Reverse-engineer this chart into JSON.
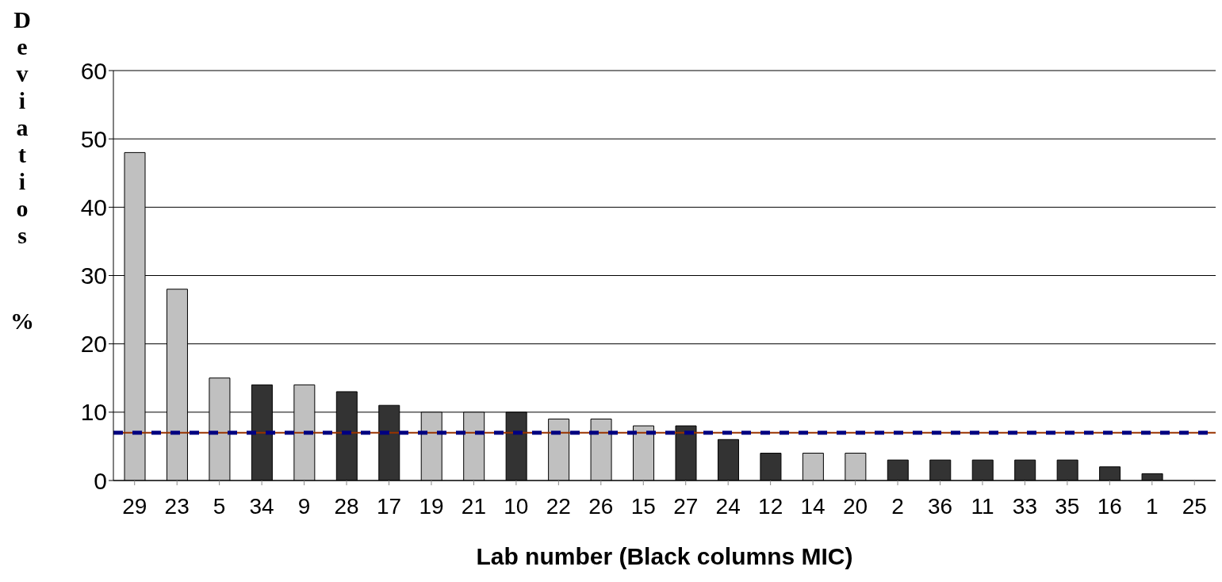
{
  "chart_data": {
    "type": "bar",
    "xlabel": "Lab number (Black columns MIC)",
    "ylabel": "Deviatios %",
    "categories": [
      "29",
      "23",
      "5",
      "34",
      "9",
      "28",
      "17",
      "19",
      "21",
      "10",
      "22",
      "26",
      "15",
      "27",
      "24",
      "12",
      "14",
      "20",
      "2",
      "36",
      "11",
      "33",
      "35",
      "16",
      "1",
      "25"
    ],
    "values": [
      48,
      28,
      15,
      14,
      14,
      13,
      11,
      10,
      10,
      10,
      9,
      9,
      8,
      8,
      6,
      4,
      4,
      4,
      3,
      3,
      3,
      3,
      3,
      2,
      1,
      0
    ],
    "colors": [
      "#c0c0c0",
      "#c0c0c0",
      "#c0c0c0",
      "#333333",
      "#c0c0c0",
      "#333333",
      "#333333",
      "#c0c0c0",
      "#c0c0c0",
      "#333333",
      "#c0c0c0",
      "#c0c0c0",
      "#c0c0c0",
      "#333333",
      "#333333",
      "#333333",
      "#c0c0c0",
      "#c0c0c0",
      "#333333",
      "#333333",
      "#333333",
      "#333333",
      "#333333",
      "#333333",
      "#333333",
      "#333333"
    ],
    "ylim": [
      0,
      60
    ],
    "yticks": [
      0,
      10,
      20,
      30,
      40,
      50,
      60
    ],
    "grid": "y",
    "legend": false,
    "ref_lines": [
      {
        "axis": "y",
        "value": 7,
        "color": "#993300",
        "line_style": "solid"
      },
      {
        "axis": "y",
        "value": 7,
        "color": "#000080",
        "line_style": "dashed"
      }
    ]
  }
}
